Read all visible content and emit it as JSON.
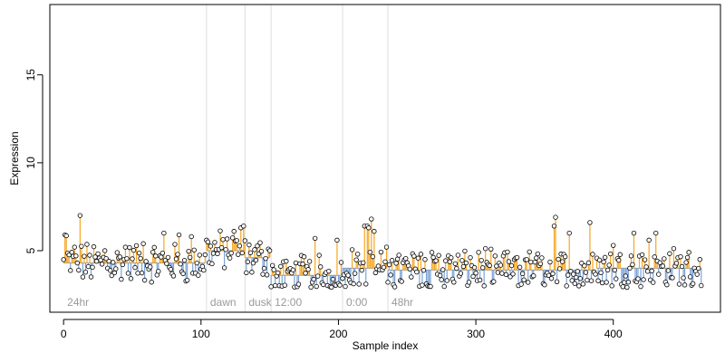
{
  "chart_data": {
    "type": "scatter",
    "title": "",
    "xlabel": "Sample index",
    "ylabel": "Expression",
    "xlim": [
      -10,
      478
    ],
    "ylim": [
      1.5,
      19
    ],
    "x_ticks": [
      0,
      100,
      200,
      300,
      400
    ],
    "y_ticks": [
      5,
      10,
      15
    ],
    "grid": false,
    "legend": "none",
    "colors": {
      "above_line": "#f5a623",
      "below_line": "#7ba3d8",
      "point_fill": "#ffffff",
      "point_stroke": "#000000",
      "boundary": "#dddddd",
      "region_label": "#9a9a9a"
    },
    "regions": [
      {
        "label": "24hr",
        "start": 0,
        "end": 104,
        "baseline": 4.3
      },
      {
        "label": "dawn",
        "start": 104,
        "end": 132,
        "baseline": 5.0
      },
      {
        "label": "dusk",
        "start": 132,
        "end": 151,
        "baseline": 4.6
      },
      {
        "label": "12:00",
        "start": 151,
        "end": 203,
        "baseline": 3.6
      },
      {
        "label": "0:00",
        "start": 203,
        "end": 236,
        "baseline": 4.0
      },
      {
        "label": "48hr",
        "start": 236,
        "end": 388,
        "baseline": 3.9
      },
      {
        "label": "",
        "start": 388,
        "end": 465,
        "baseline": 4.0
      }
    ],
    "boundaries": [
      104,
      132,
      151,
      203,
      236
    ],
    "n_points": 465,
    "spikes": [
      {
        "x": 1,
        "y": 5.9
      },
      {
        "x": 2,
        "y": 5.85
      },
      {
        "x": 12,
        "y": 7.0
      },
      {
        "x": 8,
        "y": 5.2
      },
      {
        "x": 30,
        "y": 5.0
      },
      {
        "x": 45,
        "y": 5.2
      },
      {
        "x": 58,
        "y": 5.4
      },
      {
        "x": 73,
        "y": 6.0
      },
      {
        "x": 84,
        "y": 5.9
      },
      {
        "x": 93,
        "y": 5.8
      },
      {
        "x": 104,
        "y": 5.6
      },
      {
        "x": 124,
        "y": 6.1
      },
      {
        "x": 129,
        "y": 6.3
      },
      {
        "x": 131,
        "y": 6.4
      },
      {
        "x": 150,
        "y": 5.0
      },
      {
        "x": 183,
        "y": 5.7
      },
      {
        "x": 199,
        "y": 5.6
      },
      {
        "x": 219,
        "y": 6.4
      },
      {
        "x": 221,
        "y": 6.4
      },
      {
        "x": 222,
        "y": 6.3
      },
      {
        "x": 224,
        "y": 6.8
      },
      {
        "x": 226,
        "y": 6.1
      },
      {
        "x": 260,
        "y": 4.8
      },
      {
        "x": 282,
        "y": 4.6
      },
      {
        "x": 320,
        "y": 4.7
      },
      {
        "x": 357,
        "y": 6.4
      },
      {
        "x": 358,
        "y": 6.9
      },
      {
        "x": 368,
        "y": 6.0
      },
      {
        "x": 383,
        "y": 6.6
      },
      {
        "x": 400,
        "y": 5.3
      },
      {
        "x": 415,
        "y": 6.0
      },
      {
        "x": 426,
        "y": 5.6
      },
      {
        "x": 431,
        "y": 6.0
      },
      {
        "x": 463,
        "y": 4.5
      }
    ]
  }
}
